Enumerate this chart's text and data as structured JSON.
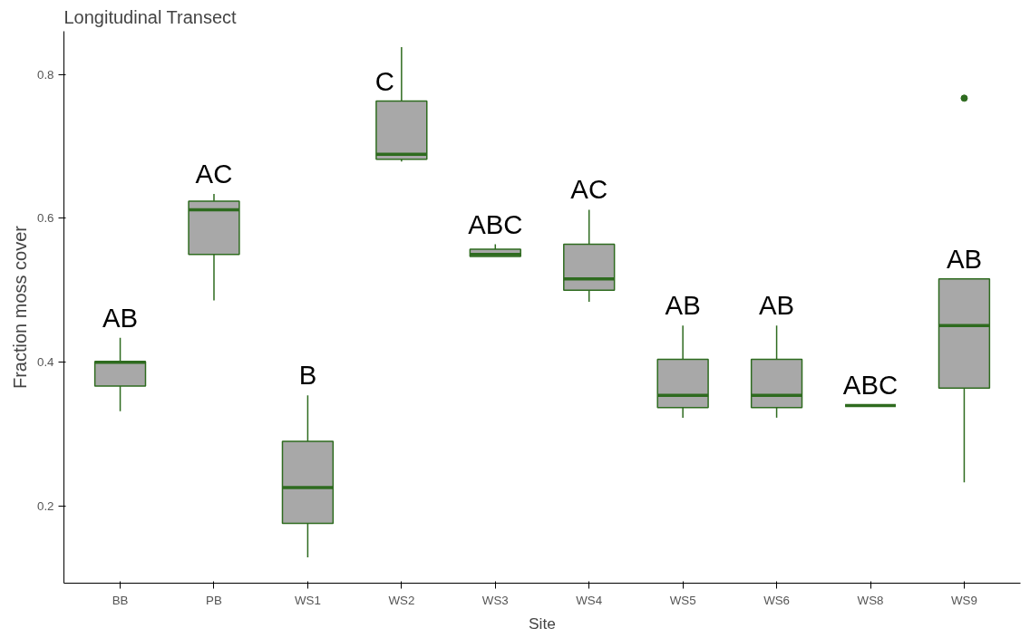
{
  "chart_data": {
    "type": "box",
    "title": "Longitudinal Transect",
    "xlabel": "Site",
    "ylabel": "Fraction moss cover",
    "categories": [
      "BB",
      "PB",
      "WS1",
      "WS2",
      "WS3",
      "WS4",
      "WS5",
      "WS6",
      "WS8",
      "WS9"
    ],
    "series": [
      {
        "color": "#2e6b1f",
        "boxes": [
          {
            "low": 0.332,
            "q1": 0.367,
            "median": 0.4,
            "q3": 0.401,
            "high": 0.434
          },
          {
            "low": 0.486,
            "q1": 0.55,
            "median": 0.612,
            "q3": 0.624,
            "high": 0.634
          },
          {
            "low": 0.129,
            "q1": 0.176,
            "median": 0.226,
            "q3": 0.29,
            "high": 0.354
          },
          {
            "low": 0.679,
            "q1": 0.682,
            "median": 0.689,
            "q3": 0.763,
            "high": 0.838
          },
          {
            "low": 0.547,
            "q1": 0.547,
            "median": 0.55,
            "q3": 0.557,
            "high": 0.564
          },
          {
            "low": 0.484,
            "q1": 0.5,
            "median": 0.516,
            "q3": 0.564,
            "high": 0.612
          },
          {
            "low": 0.323,
            "q1": 0.337,
            "median": 0.354,
            "q3": 0.404,
            "high": 0.451
          },
          {
            "low": 0.323,
            "q1": 0.337,
            "median": 0.354,
            "q3": 0.404,
            "high": 0.451
          },
          {
            "low": 0.34,
            "q1": 0.34,
            "median": 0.34,
            "q3": 0.34,
            "high": 0.34
          },
          {
            "low": 0.233,
            "q1": 0.364,
            "median": 0.451,
            "q3": 0.516,
            "high": 0.516,
            "outliers": [
              0.767
            ]
          }
        ]
      }
    ],
    "ylim": [
      0.093,
      0.86
    ],
    "yticks": [
      0.2,
      0.4,
      0.6,
      0.8
    ],
    "grid": false,
    "annotations": [
      {
        "text": "AB",
        "x": "BB",
        "y": 0.434
      },
      {
        "text": "AC",
        "x": "PB",
        "y": 0.634
      },
      {
        "text": "B",
        "x": "WS1",
        "y": 0.354
      },
      {
        "text": "C",
        "x": "WS2",
        "y": 0.763
      },
      {
        "text": "ABC",
        "x": "WS3",
        "y": 0.564
      },
      {
        "text": "AC",
        "x": "WS4",
        "y": 0.612
      },
      {
        "text": "AB",
        "x": "WS5",
        "y": 0.451
      },
      {
        "text": "AB",
        "x": "WS6",
        "y": 0.451
      },
      {
        "text": "ABC",
        "x": "WS8",
        "y": 0.34
      },
      {
        "text": "AB",
        "x": "WS9",
        "y": 0.516
      }
    ]
  }
}
